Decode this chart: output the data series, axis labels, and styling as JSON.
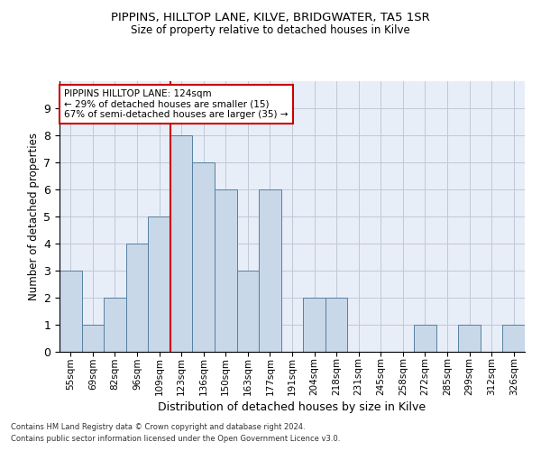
{
  "title1": "PIPPINS, HILLTOP LANE, KILVE, BRIDGWATER, TA5 1SR",
  "title2": "Size of property relative to detached houses in Kilve",
  "xlabel": "Distribution of detached houses by size in Kilve",
  "ylabel": "Number of detached properties",
  "footnote1": "Contains HM Land Registry data © Crown copyright and database right 2024.",
  "footnote2": "Contains public sector information licensed under the Open Government Licence v3.0.",
  "annotation_line1": "PIPPINS HILLTOP LANE: 124sqm",
  "annotation_line2": "← 29% of detached houses are smaller (15)",
  "annotation_line3": "67% of semi-detached houses are larger (35) →",
  "bar_labels": [
    "55sqm",
    "69sqm",
    "82sqm",
    "96sqm",
    "109sqm",
    "123sqm",
    "136sqm",
    "150sqm",
    "163sqm",
    "177sqm",
    "191sqm",
    "204sqm",
    "218sqm",
    "231sqm",
    "245sqm",
    "258sqm",
    "272sqm",
    "285sqm",
    "299sqm",
    "312sqm",
    "326sqm"
  ],
  "bar_values": [
    3,
    1,
    2,
    4,
    5,
    8,
    7,
    6,
    3,
    6,
    0,
    2,
    2,
    0,
    0,
    0,
    1,
    0,
    1,
    0,
    1
  ],
  "bar_color": "#c8d8e8",
  "bar_edge_color": "#5580a0",
  "red_line_index": 5,
  "red_line_color": "#cc0000",
  "annotation_box_color": "#cc0000",
  "grid_color": "#c0c8d8",
  "background_color": "#e8eef8",
  "ylim": [
    0,
    10
  ],
  "yticks": [
    0,
    1,
    2,
    3,
    4,
    5,
    6,
    7,
    8,
    9,
    10
  ]
}
